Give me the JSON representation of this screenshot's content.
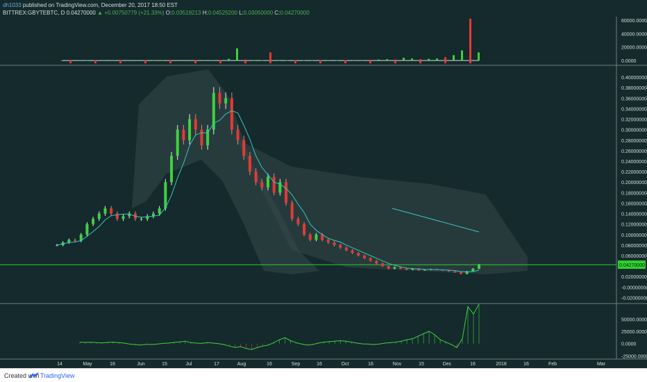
{
  "header": {
    "username": "dh1033",
    "published_text": " published on TradingView.com, December 20, 2017 18:50 EST"
  },
  "ohlc": {
    "symbol": "BITTREX:GBYTEBTC, D",
    "close_value": "0.04270000",
    "change": "+0.00750779 (+21.33%)",
    "open_label": "O:",
    "open": "0.03519213",
    "high_label": "H:",
    "high": "0.04525200",
    "low_label": "L:",
    "low": "0.03050000",
    "close_label": "C:",
    "close": "0.04270000"
  },
  "footer": {
    "created_with": "Created with",
    "brand": "TradingView"
  },
  "colors": {
    "background": "#142a2c",
    "up": "#3fd13f",
    "down": "#e53935",
    "price_line": "#2fd12f",
    "cloud": "#2a3e40",
    "band": "#34494b",
    "teal": "#3cc3c3"
  },
  "chart_data": [
    {
      "type": "bar",
      "title": "Volume",
      "ylim": [
        -5000,
        65000
      ],
      "y_ticks": [
        "60000.0000",
        "40000.0000",
        "20000.0000",
        "0.0000"
      ],
      "y_tick_values": [
        60000,
        40000,
        20000,
        0
      ],
      "series": [
        {
          "values": [
            200,
            300,
            250,
            400,
            350,
            300,
            250,
            300,
            200,
            250,
            300,
            350,
            400,
            300,
            250,
            200,
            250,
            300,
            350,
            300,
            2500,
            18000,
            1500,
            800,
            600,
            12000,
            800,
            500,
            400,
            600,
            500,
            400,
            300,
            500,
            600,
            400,
            800,
            1200,
            1500,
            2000,
            1500,
            4000,
            3000,
            2000,
            2500,
            3000,
            5000,
            8000,
            15000,
            62000,
            12000
          ]
        }
      ]
    },
    {
      "type": "line",
      "title": "",
      "ylim": [
        -0.03,
        0.42
      ],
      "y_ticks": [
        "0.40000000",
        "0.38000000",
        "0.36000000",
        "0.34000000",
        "0.32000000",
        "0.30000000",
        "0.28000000",
        "0.26000000",
        "0.24000000",
        "0.22000000",
        "0.20000000",
        "0.18000000",
        "0.16000000",
        "0.14000000",
        "0.12000000",
        "0.10000000",
        "0.08000000",
        "0.06000000",
        "0.02000000",
        "-0.00000000",
        "-0.02000000"
      ],
      "y_tick_values": [
        0.4,
        0.38,
        0.36,
        0.34,
        0.32,
        0.3,
        0.28,
        0.26,
        0.24,
        0.22,
        0.2,
        0.18,
        0.16,
        0.14,
        0.12,
        0.1,
        0.08,
        0.06,
        0.02,
        0.0,
        -0.02
      ],
      "last_price_label": "0.04270000",
      "last_price": 0.0427,
      "x_labels": [
        "14",
        "May",
        "16",
        "Jun",
        "15",
        "Jul",
        "17",
        "Aug",
        "16",
        "Sep",
        "16",
        "Oct",
        "16",
        "Nov",
        "15",
        "Dec",
        "16",
        "2018",
        "16",
        "Feb",
        "Mar"
      ],
      "series": [
        {
          "name": "",
          "values": [
            0.08,
            0.085,
            0.09,
            0.088,
            0.1,
            0.12,
            0.13,
            0.14,
            0.15,
            0.14,
            0.13,
            0.135,
            0.14,
            0.13,
            0.13,
            0.135,
            0.14,
            0.15,
            0.2,
            0.25,
            0.3,
            0.28,
            0.32,
            0.3,
            0.27,
            0.3,
            0.37,
            0.35,
            0.36,
            0.3,
            0.28,
            0.25,
            0.22,
            0.2,
            0.19,
            0.21,
            0.18,
            0.2,
            0.16,
            0.13,
            0.12,
            0.1,
            0.09,
            0.1,
            0.09,
            0.085,
            0.08,
            0.075,
            0.07,
            0.065,
            0.06,
            0.055,
            0.05,
            0.045,
            0.04,
            0.035,
            0.038,
            0.035,
            0.033,
            0.035,
            0.032,
            0.033,
            0.034,
            0.033,
            0.032,
            0.03,
            0.028,
            0.025,
            0.03,
            0.035,
            0.0427
          ]
        }
      ]
    },
    {
      "type": "line",
      "title": "",
      "ylim": [
        -30000,
        80000
      ],
      "y_ticks": [
        "50000.0000",
        "25000.0000",
        "0.0000",
        "-25000.0000"
      ],
      "y_tick_values": [
        50000,
        25000,
        0,
        -25000
      ],
      "series": [
        {
          "name": "",
          "values": [
            3000,
            2500,
            2800,
            2000,
            1500,
            2500,
            3000,
            2000,
            1000,
            -1000,
            -2000,
            -3000,
            -1500,
            -2000,
            -1000,
            500,
            1000,
            2500,
            3500,
            5000,
            2000,
            1000,
            500,
            2000,
            1000,
            0,
            -2000,
            -5000,
            -8000,
            -6000,
            -10000,
            -12000,
            -8000,
            -5000,
            -3000,
            2000,
            8000,
            12000,
            6000,
            2000,
            -1000,
            -3000,
            -2000,
            1000,
            3000,
            4000,
            5000,
            6000,
            5000,
            3000,
            1000,
            -500,
            -1000,
            -2000,
            -1000,
            1000,
            2000,
            3000,
            5000,
            8000,
            10000,
            15000,
            20000,
            25000,
            18000,
            8000,
            3000,
            -2000,
            -8000,
            10000,
            75000,
            60000,
            80000
          ]
        }
      ]
    }
  ]
}
